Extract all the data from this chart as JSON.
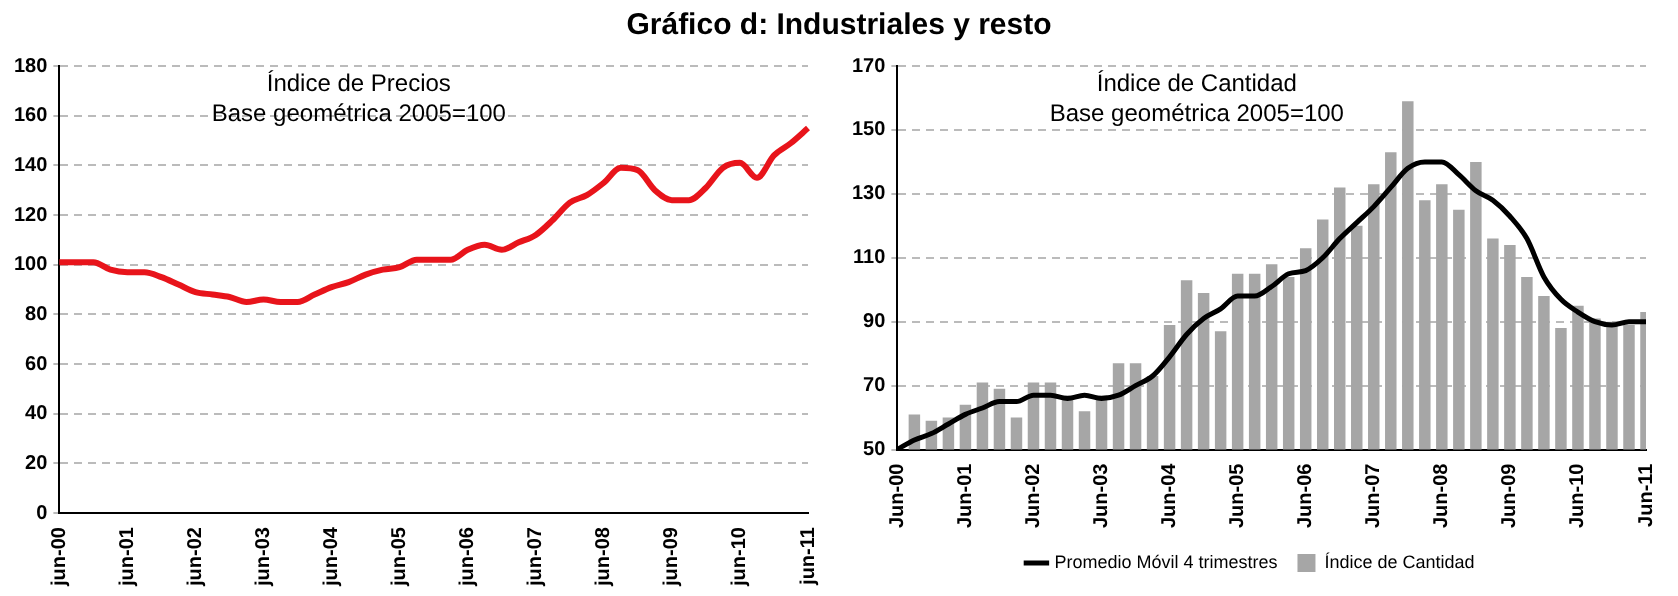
{
  "chart_data": [
    {
      "type": "line",
      "title": "Gráfico d: Industriales y resto",
      "annotations": [
        "Índice de Precios",
        "Base geométrica 2005=100"
      ],
      "categories": [
        "jun-00",
        null,
        null,
        null,
        "jun-01",
        null,
        null,
        null,
        "jun-02",
        null,
        null,
        null,
        "jun-03",
        null,
        null,
        null,
        "jun-04",
        null,
        null,
        null,
        "jun-05",
        null,
        null,
        null,
        "jun-06",
        null,
        null,
        null,
        "jun-07",
        null,
        null,
        null,
        "jun-08",
        null,
        null,
        null,
        "jun-09",
        null,
        null,
        null,
        "jun-10",
        null,
        null,
        null,
        "jun-11"
      ],
      "series": [
        {
          "color": "#e8141b",
          "values": [
            101,
            101,
            101,
            98,
            97,
            97,
            95,
            92,
            89,
            88,
            87,
            85,
            86,
            85,
            85,
            88,
            91,
            93,
            96,
            98,
            99,
            102,
            102,
            102,
            106,
            108,
            106,
            109,
            112,
            118,
            125,
            128,
            133,
            139,
            138,
            130,
            126,
            126,
            131,
            139,
            141,
            135,
            144,
            149,
            155
          ]
        }
      ],
      "ylim": [
        0,
        180
      ],
      "yticks": [
        0,
        20,
        40,
        60,
        80,
        100,
        120,
        140,
        160,
        180
      ],
      "grid": "y",
      "legend": false,
      "marker": "none",
      "line_style": "solid"
    },
    {
      "type": "bar",
      "annotations": [
        "Índice de Cantidad",
        "Base geométrica 2005=100"
      ],
      "categories": [
        "Jun-00",
        null,
        null,
        null,
        "Jun-01",
        null,
        null,
        null,
        "Jun-02",
        null,
        null,
        null,
        "Jun-03",
        null,
        null,
        null,
        "Jun-04",
        null,
        null,
        null,
        "Jun-05",
        null,
        null,
        null,
        "Jun-06",
        null,
        null,
        null,
        "Jun-07",
        null,
        null,
        null,
        "Jun-08",
        null,
        null,
        null,
        "Jun-09",
        null,
        null,
        null,
        "Jun-10",
        null,
        null,
        null,
        "Jun-11"
      ],
      "series": [
        {
          "name": "Índice de Cantidad",
          "type": "bar",
          "color": "#a6a6a6",
          "values": [
            null,
            61,
            59,
            60,
            64,
            71,
            69,
            60,
            71,
            71,
            67,
            62,
            67,
            77,
            77,
            73,
            89,
            103,
            99,
            87,
            105,
            105,
            108,
            104,
            113,
            122,
            132,
            120,
            133,
            143,
            159,
            128,
            133,
            125,
            140,
            116,
            114,
            104,
            98,
            88,
            95,
            91,
            90,
            89,
            93
          ]
        },
        {
          "name": "Promedio Móvil 4 trimestres",
          "type": "line",
          "color": "#000000",
          "values": [
            50,
            53,
            55,
            58,
            61,
            63,
            65,
            65,
            67,
            67,
            66,
            67,
            66,
            67,
            70,
            73,
            79,
            86,
            91,
            94,
            98,
            98,
            101,
            105,
            106,
            110,
            116,
            121,
            126,
            132,
            138,
            140,
            140,
            136,
            131,
            128,
            123,
            116,
            104,
            97,
            93,
            90,
            89,
            90,
            90
          ]
        }
      ],
      "ylim": [
        50,
        170
      ],
      "yticks": [
        50,
        70,
        90,
        110,
        130,
        150,
        170
      ],
      "grid": "y",
      "legend": "bottom",
      "marker": "none",
      "line_style": "solid"
    }
  ]
}
